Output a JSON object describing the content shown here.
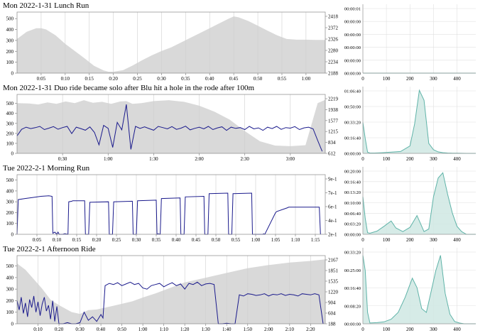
{
  "chart_data": [
    {
      "type": "line",
      "title": "Mon 2022-1-31 Lunch Run",
      "xlabel": "",
      "ylabel": "",
      "x_ticks": [
        "0:05",
        "0:10",
        "0:15",
        "0:20",
        "0:25",
        "0:30",
        "0:35",
        "0:40",
        "0:45",
        "0:50",
        "0:55",
        "1:00"
      ],
      "xlim_minutes": [
        0,
        64
      ],
      "y_ticks": [
        0,
        100,
        200,
        300,
        400,
        500
      ],
      "ylim": [
        0,
        560
      ],
      "y2_ticks": [
        "2188",
        "2234",
        "2280",
        "2326",
        "2372",
        "2418"
      ],
      "y2lim": [
        2188,
        2442
      ],
      "series": [
        {
          "type": "area",
          "axis": "right",
          "color": "#d9d9d9",
          "x": [
            0,
            2,
            4,
            5,
            6,
            8,
            10,
            12,
            14,
            16,
            18,
            19,
            20,
            22,
            24,
            26,
            28,
            30,
            32,
            34,
            36,
            38,
            40,
            42,
            44,
            45,
            46,
            48,
            50,
            52,
            54,
            56,
            58,
            60,
            62,
            64
          ],
          "y": [
            2330,
            2360,
            2375,
            2375,
            2370,
            2345,
            2310,
            2280,
            2250,
            2218,
            2199,
            2194,
            2194,
            2200,
            2220,
            2242,
            2262,
            2280,
            2295,
            2315,
            2335,
            2355,
            2375,
            2395,
            2415,
            2424,
            2420,
            2405,
            2385,
            2365,
            2345,
            2330,
            2327,
            2327,
            2326,
            2326
          ]
        },
        {
          "type": "line",
          "axis": "left",
          "color": "#1a1a8c",
          "x": [],
          "y": []
        }
      ],
      "hist": {
        "y_ticks": [
          "00:00:00",
          "00:00:00",
          "00:00:00",
          "00:00:00",
          "00:00:00",
          "00:00:01"
        ],
        "x_ticks": [
          0,
          100,
          200,
          300,
          400
        ],
        "xlim": [
          0,
          480
        ],
        "ylim": [
          0,
          1
        ],
        "x": [
          0,
          480
        ],
        "y": [
          0,
          0
        ]
      }
    },
    {
      "type": "line",
      "title": "Mon 2022-1-31 Duo ride became solo after Blu hit a hole in the rode after 100m",
      "xlabel": "",
      "ylabel": "",
      "x_ticks": [
        "0:30",
        "1:00",
        "1:30",
        "2:00",
        "2:30",
        "3:00"
      ],
      "xlim_minutes": [
        0,
        203
      ],
      "y_ticks": [
        0,
        100,
        200,
        300,
        400,
        500
      ],
      "ylim": [
        0,
        590
      ],
      "y2_ticks": [
        "612",
        "834",
        "1215",
        "1577",
        "1938",
        "2219"
      ],
      "y2lim": [
        612,
        2404
      ],
      "series": [
        {
          "type": "area",
          "axis": "right",
          "color": "#d9d9d9",
          "x": [
            0,
            8,
            14,
            20,
            26,
            32,
            38,
            44,
            50,
            56,
            62,
            68,
            72,
            76,
            82,
            90,
            100,
            110,
            120,
            130,
            140,
            150,
            160,
            170,
            180,
            190,
            198,
            203
          ],
          "y": [
            2140,
            2130,
            2100,
            2160,
            2120,
            2190,
            2140,
            2230,
            2150,
            2180,
            2120,
            2190,
            2200,
            2120,
            2140,
            2200,
            2230,
            2180,
            2060,
            1880,
            1640,
            1290,
            980,
            850,
            830,
            860,
            2140,
            2240
          ]
        },
        {
          "type": "line",
          "axis": "left",
          "color": "#1a1a8c",
          "x": [
            0,
            3,
            6,
            9,
            12,
            15,
            18,
            21,
            24,
            27,
            30,
            33,
            36,
            39,
            42,
            45,
            48,
            51,
            54,
            57,
            60,
            63,
            66,
            69,
            72,
            75,
            78,
            81,
            84,
            87,
            90,
            93,
            96,
            99,
            102,
            105,
            108,
            111,
            114,
            117,
            120,
            123,
            126,
            129,
            132,
            135,
            138,
            141,
            144,
            147,
            150,
            153,
            156,
            159,
            162,
            165,
            168,
            171,
            174,
            177,
            180,
            183,
            186,
            189,
            192,
            195,
            198,
            201
          ],
          "y": [
            175,
            240,
            262,
            248,
            257,
            270,
            238,
            252,
            268,
            242,
            258,
            270,
            198,
            262,
            248,
            232,
            265,
            210,
            85,
            280,
            250,
            60,
            310,
            235,
            490,
            40,
            270,
            250,
            265,
            248,
            232,
            270,
            258,
            245,
            268,
            240,
            252,
            272,
            235,
            250,
            262,
            245,
            270,
            238,
            255,
            266,
            230,
            262,
            250,
            258,
            238,
            270,
            245,
            255,
            230,
            262,
            248,
            270,
            240,
            258,
            252,
            268,
            238,
            255,
            262,
            245,
            130,
            20
          ]
        }
      ],
      "hist": {
        "y_ticks": [
          "00:00:00",
          "00:16:40",
          "00:33:20",
          "00:50:00",
          "01:06:40"
        ],
        "x_ticks": [
          0,
          100,
          200,
          300,
          400
        ],
        "xlim": [
          0,
          480
        ],
        "ylim": [
          0,
          5400
        ],
        "x": [
          0,
          10,
          20,
          30,
          50,
          80,
          120,
          160,
          200,
          220,
          240,
          260,
          280,
          300,
          320,
          340,
          360,
          380,
          400,
          420,
          440,
          460,
          480
        ],
        "y": [
          2500,
          1200,
          100,
          30,
          30,
          50,
          100,
          150,
          600,
          2400,
          5100,
          4300,
          800,
          300,
          120,
          60,
          30,
          20,
          10,
          5,
          0,
          0,
          0
        ]
      }
    },
    {
      "type": "line",
      "title": "Tue 2022-2-1 Morning Run",
      "xlabel": "",
      "ylabel": "",
      "x_ticks": [
        "0:05",
        "0:10",
        "0:15",
        "0:20",
        "0:25",
        "0:30",
        "0:35",
        "0:40",
        "0:45",
        "0:50",
        "0:55",
        "1:00",
        "1:05",
        "1:10",
        "1:15"
      ],
      "xlim_minutes": [
        0,
        77.5
      ],
      "y_ticks": [
        0,
        100,
        200,
        300,
        400,
        500
      ],
      "ylim": [
        0,
        550
      ],
      "y2_ticks": [
        "2e-1",
        "4e-1",
        "6e-1",
        "7e-1",
        "9e-1"
      ],
      "y2lim": [
        0,
        1.0
      ],
      "series": [
        {
          "type": "area",
          "axis": "right",
          "color": "#d9d9d9",
          "x": [],
          "y": []
        },
        {
          "type": "line",
          "axis": "left",
          "color": "#1a1a8c",
          "x": [
            0,
            0.3,
            2,
            4,
            6,
            8,
            8.8,
            9,
            9.5,
            10,
            10.3,
            10.6,
            11.5,
            12,
            12.8,
            13,
            13.8,
            14,
            17,
            17.2,
            18,
            18.3,
            23,
            23.2,
            24,
            24.3,
            29,
            29.2,
            30,
            30.3,
            35,
            35.2,
            35.5,
            36,
            36.3,
            41,
            41.2,
            42,
            42.3,
            47,
            47.2,
            48,
            48.3,
            53,
            53.2,
            54,
            54.3,
            59,
            59.2,
            61.8,
            62,
            62.3,
            65,
            65.3,
            68,
            68.3,
            76,
            76.3
          ],
          "y": [
            0,
            320,
            330,
            340,
            350,
            355,
            350,
            10,
            20,
            0,
            20,
            0,
            0,
            5,
            0,
            300,
            305,
            310,
            310,
            0,
            0,
            295,
            300,
            0,
            0,
            300,
            305,
            0,
            0,
            310,
            315,
            0,
            5,
            0,
            330,
            335,
            0,
            0,
            345,
            350,
            0,
            0,
            375,
            380,
            0,
            0,
            375,
            380,
            0,
            0,
            5,
            0,
            200,
            210,
            245,
            250,
            250,
            0
          ]
        }
      ],
      "hist": {
        "y_ticks": [
          "00:00:00",
          "00:03:20",
          "00:06:40",
          "00:10:00",
          "00:13:20",
          "00:16:40",
          "00:20:00"
        ],
        "x_ticks": [
          0,
          100,
          200,
          300,
          400
        ],
        "xlim": [
          0,
          480
        ],
        "ylim": [
          0,
          1260
        ],
        "x": [
          0,
          10,
          20,
          30,
          60,
          90,
          120,
          140,
          170,
          200,
          230,
          260,
          280,
          300,
          320,
          340,
          360,
          380,
          400,
          420,
          440,
          480
        ],
        "y": [
          700,
          300,
          30,
          20,
          60,
          150,
          250,
          120,
          50,
          130,
          350,
          50,
          100,
          700,
          1050,
          1150,
          750,
          400,
          150,
          50,
          0,
          0
        ]
      }
    },
    {
      "type": "line",
      "title": "Tue 2022-2-1 Afternoon Ride",
      "xlabel": "",
      "ylabel": "",
      "x_ticks": [
        "0:10",
        "0:20",
        "0:30",
        "0:40",
        "0:50",
        "1:00",
        "1:10",
        "1:20",
        "1:30",
        "1:40",
        "1:50",
        "2:00",
        "2:10",
        "2:20"
      ],
      "xlim_minutes": [
        0,
        147
      ],
      "y_ticks": [
        0,
        100,
        200,
        300,
        400,
        500
      ],
      "ylim": [
        0,
        590
      ],
      "y2_ticks": [
        "188",
        "604",
        "904",
        "1220",
        "1535",
        "1851",
        "2167"
      ],
      "y2lim": [
        188,
        2349
      ],
      "series": [
        {
          "type": "area",
          "axis": "right",
          "color": "#d9d9d9",
          "x": [
            0,
            4,
            8,
            12,
            16,
            20,
            26,
            30,
            34,
            38,
            42,
            46,
            50,
            55,
            60,
            66,
            72,
            80,
            90,
            100,
            110,
            120,
            130,
            140,
            147
          ],
          "y": [
            2100,
            1900,
            1600,
            1300,
            950,
            780,
            560,
            500,
            620,
            640,
            700,
            760,
            820,
            900,
            1020,
            1150,
            1300,
            1500,
            1650,
            1800,
            1950,
            2050,
            2130,
            2180,
            2230
          ]
        },
        {
          "type": "line",
          "axis": "left",
          "color": "#1a1a8c",
          "x": [
            0,
            1,
            2,
            3,
            4,
            5,
            6,
            7,
            8,
            9,
            10,
            11,
            12,
            13,
            14,
            15,
            16,
            17,
            18,
            19,
            20,
            22,
            24,
            26,
            28,
            30,
            32,
            34,
            36,
            38,
            40,
            41,
            42,
            43,
            44,
            46,
            48,
            50,
            52,
            54,
            56,
            58,
            60,
            62,
            64,
            66,
            68,
            70,
            72,
            74,
            76,
            78,
            80,
            82,
            84,
            86,
            88,
            90,
            92,
            94,
            96,
            98,
            100,
            102,
            104,
            106,
            108,
            110,
            112,
            114,
            116,
            118,
            120,
            122,
            124,
            126,
            128,
            130,
            132,
            134,
            136,
            138,
            140,
            142,
            144,
            146
          ],
          "y": [
            200,
            120,
            230,
            90,
            180,
            60,
            210,
            140,
            240,
            100,
            190,
            70,
            170,
            230,
            110,
            160,
            40,
            200,
            20,
            150,
            0,
            0,
            10,
            0,
            0,
            10,
            100,
            30,
            60,
            20,
            80,
            50,
            330,
            340,
            350,
            340,
            355,
            330,
            345,
            360,
            340,
            350,
            310,
            300,
            330,
            340,
            350,
            320,
            340,
            355,
            330,
            345,
            300,
            350,
            340,
            360,
            330,
            345,
            350,
            340,
            0,
            0,
            5,
            0,
            0,
            250,
            240,
            260,
            255,
            245,
            250,
            260,
            240,
            255,
            250,
            260,
            245,
            255,
            250,
            240,
            260,
            255,
            250,
            260,
            250,
            0
          ]
        }
      ],
      "hist": {
        "y_ticks": [
          "00:00:00",
          "00:08:20",
          "00:16:40",
          "00:25:00",
          "00:33:20"
        ],
        "x_ticks": [
          0,
          100,
          200,
          300,
          400
        ],
        "xlim": [
          0,
          480
        ],
        "ylim": [
          0,
          2000
        ],
        "x": [
          0,
          10,
          20,
          30,
          60,
          90,
          120,
          150,
          180,
          210,
          230,
          250,
          270,
          290,
          310,
          330,
          350,
          370,
          390,
          410,
          430,
          480
        ],
        "y": [
          1800,
          1400,
          300,
          20,
          30,
          50,
          120,
          300,
          700,
          1200,
          950,
          400,
          300,
          850,
          1400,
          1800,
          800,
          250,
          60,
          20,
          0,
          0
        ]
      }
    }
  ]
}
